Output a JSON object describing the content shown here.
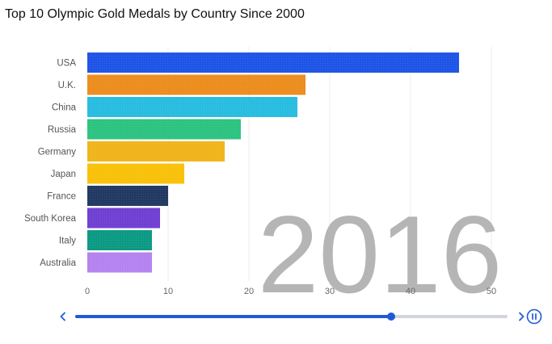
{
  "chart_data": {
    "type": "bar",
    "orientation": "horizontal",
    "title": "Top 10 Olympic Gold Medals by Country Since 2000",
    "categories": [
      "USA",
      "U.K.",
      "China",
      "Russia",
      "Germany",
      "Japan",
      "France",
      "South Korea",
      "Italy",
      "Australia"
    ],
    "values": [
      46,
      27,
      26,
      19,
      17,
      12,
      10,
      9,
      8,
      8
    ],
    "colors": [
      "#1f55e6",
      "#ec8d1e",
      "#28bde0",
      "#2dc381",
      "#f0b41c",
      "#f9c10a",
      "#223a62",
      "#7040d3",
      "#0c9a85",
      "#b583ef"
    ],
    "xlim": [
      0,
      55
    ],
    "xticks": [
      0,
      10,
      20,
      30,
      40,
      50
    ],
    "grid": true,
    "year_label": "2016"
  },
  "timeline": {
    "progress": 0.73,
    "prev_icon": "chevron-left-icon",
    "next_icon": "chevron-right-icon",
    "play_icon": "pause-icon",
    "accent_color": "#1e5ad8"
  }
}
